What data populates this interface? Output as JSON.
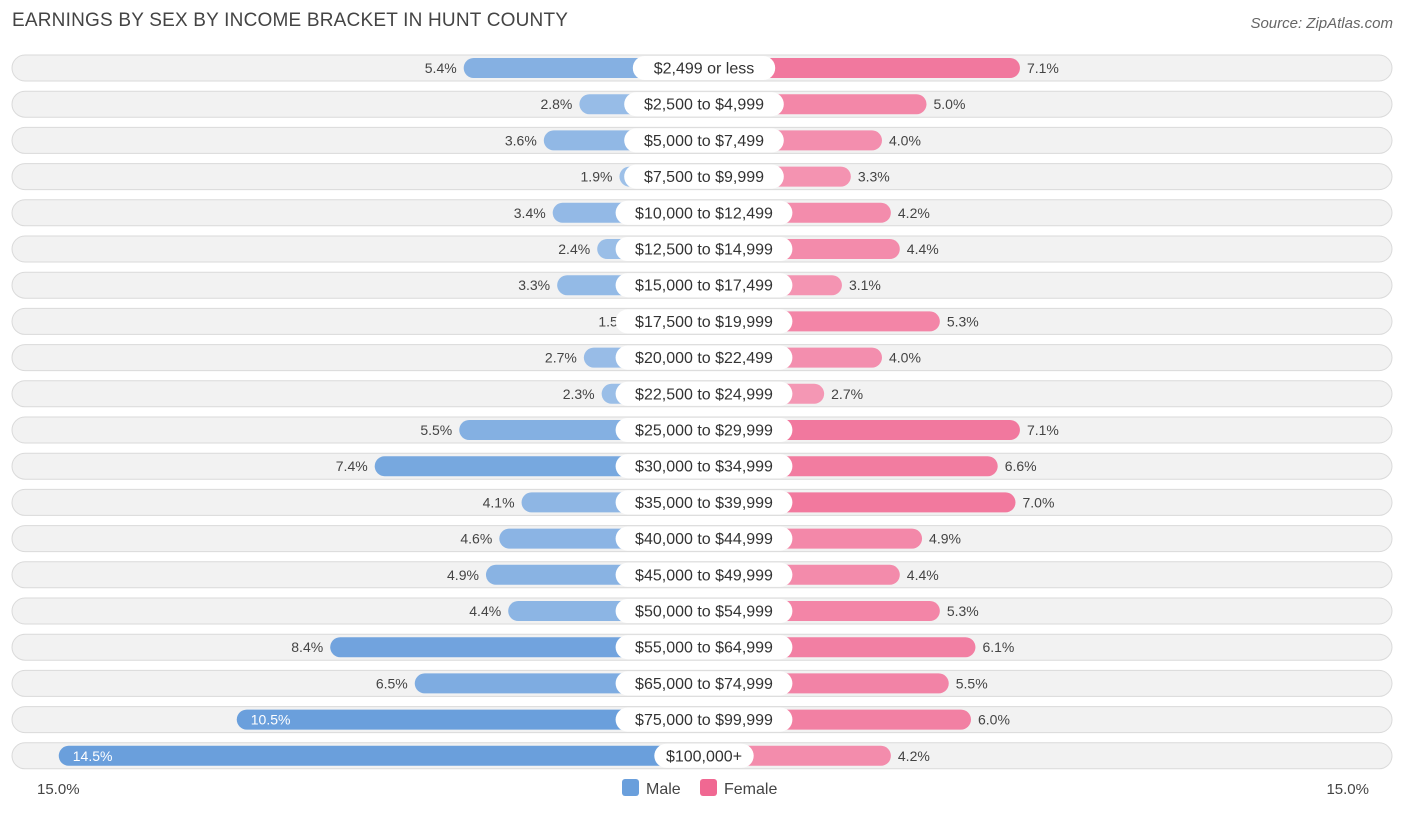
{
  "header": {
    "title": "EARNINGS BY SEX BY INCOME BRACKET IN HUNT COUNTY",
    "source": "Source: ZipAtlas.com"
  },
  "colors": {
    "male_dark": "#6a9fdc",
    "male_light": "#aac8eb",
    "female_dark": "#f06892",
    "female_light": "#f6aac2"
  },
  "chart_data": {
    "type": "bar",
    "orientation": "horizontal-diverging",
    "title": "EARNINGS BY SEX BY INCOME BRACKET IN HUNT COUNTY",
    "categories": [
      "$2,499 or less",
      "$2,500 to $4,999",
      "$5,000 to $7,499",
      "$7,500 to $9,999",
      "$10,000 to $12,499",
      "$12,500 to $14,999",
      "$15,000 to $17,499",
      "$17,500 to $19,999",
      "$20,000 to $22,499",
      "$22,500 to $24,999",
      "$25,000 to $29,999",
      "$30,000 to $34,999",
      "$35,000 to $39,999",
      "$40,000 to $44,999",
      "$45,000 to $49,999",
      "$50,000 to $54,999",
      "$55,000 to $64,999",
      "$65,000 to $74,999",
      "$75,000 to $99,999",
      "$100,000+"
    ],
    "series": [
      {
        "name": "Male",
        "values": [
          5.4,
          2.8,
          3.6,
          1.9,
          3.4,
          2.4,
          3.3,
          1.5,
          2.7,
          2.3,
          5.5,
          7.4,
          4.1,
          4.6,
          4.9,
          4.4,
          8.4,
          6.5,
          10.5,
          14.5
        ],
        "labels": [
          "5.4%",
          "2.8%",
          "3.6%",
          "1.9%",
          "3.4%",
          "2.4%",
          "3.3%",
          "1.5%",
          "2.7%",
          "2.3%",
          "5.5%",
          "7.4%",
          "4.1%",
          "4.6%",
          "4.9%",
          "4.4%",
          "8.4%",
          "6.5%",
          "10.5%",
          "14.5%"
        ]
      },
      {
        "name": "Female",
        "values": [
          7.1,
          5.0,
          4.0,
          3.3,
          4.2,
          4.4,
          3.1,
          5.3,
          4.0,
          2.7,
          7.1,
          6.6,
          7.0,
          4.9,
          4.4,
          5.3,
          6.1,
          5.5,
          6.0,
          4.2
        ],
        "labels": [
          "7.1%",
          "5.0%",
          "4.0%",
          "3.3%",
          "4.2%",
          "4.4%",
          "3.1%",
          "5.3%",
          "4.0%",
          "2.7%",
          "7.1%",
          "6.6%",
          "7.0%",
          "4.9%",
          "4.4%",
          "5.3%",
          "6.1%",
          "5.5%",
          "6.0%",
          "4.2%"
        ]
      }
    ],
    "xlim": [
      -15.0,
      15.0
    ],
    "axis_labels": {
      "left": "15.0%",
      "right": "15.0%"
    },
    "legend": {
      "position": "bottom-center",
      "entries": [
        "Male",
        "Female"
      ]
    }
  }
}
